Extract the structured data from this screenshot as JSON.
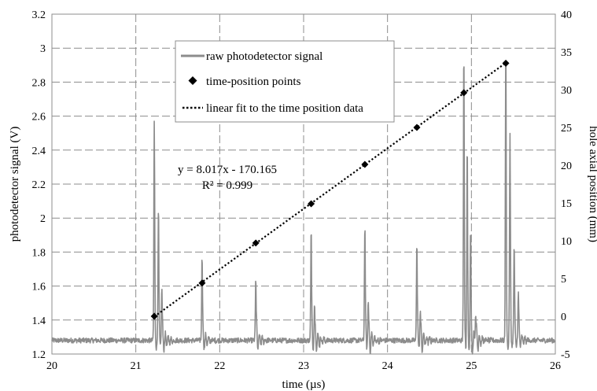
{
  "chart_data": {
    "type": "line",
    "xlabel": "time (µs)",
    "ylabel": "photodetector signal (V)",
    "y2label": "hole axial position (mm)",
    "xlim": [
      20,
      26
    ],
    "ylim": [
      1.2,
      3.2
    ],
    "y2lim": [
      -5,
      40
    ],
    "x_ticks": [
      20,
      21,
      22,
      23,
      24,
      25,
      26
    ],
    "y_ticks": [
      1.2,
      1.4,
      1.6,
      1.8,
      2,
      2.2,
      2.4,
      2.6,
      2.8,
      3,
      3.2
    ],
    "y2_ticks": [
      -5,
      0,
      5,
      10,
      15,
      20,
      25,
      30,
      35,
      40
    ],
    "grid": true,
    "legend_position": "top-center",
    "baseline_level": 1.28,
    "series": [
      {
        "name": "raw photodetector signal",
        "axis": "left",
        "style": "solid",
        "color": "#8c8c8c",
        "peaks": [
          {
            "x": 21.22,
            "y": 2.57
          },
          {
            "x": 21.27,
            "y": 2.05
          },
          {
            "x": 21.31,
            "y": 1.57
          },
          {
            "x": 21.79,
            "y": 1.78
          },
          {
            "x": 22.43,
            "y": 1.65
          },
          {
            "x": 23.09,
            "y": 1.94
          },
          {
            "x": 23.13,
            "y": 1.47
          },
          {
            "x": 23.73,
            "y": 1.97
          },
          {
            "x": 23.77,
            "y": 1.48
          },
          {
            "x": 24.35,
            "y": 1.87
          },
          {
            "x": 24.39,
            "y": 1.42
          },
          {
            "x": 24.91,
            "y": 3.01
          },
          {
            "x": 24.95,
            "y": 2.42
          },
          {
            "x": 24.99,
            "y": 1.9
          },
          {
            "x": 25.05,
            "y": 1.45
          },
          {
            "x": 25.41,
            "y": 3.05
          },
          {
            "x": 25.46,
            "y": 2.48
          },
          {
            "x": 25.51,
            "y": 1.85
          },
          {
            "x": 25.56,
            "y": 1.55
          }
        ]
      },
      {
        "name": "time-position points",
        "axis": "right",
        "style": "marker",
        "color": "#000000",
        "x": [
          21.22,
          21.79,
          22.43,
          23.09,
          23.73,
          24.35,
          24.91,
          25.41
        ],
        "y": [
          0.0,
          4.4,
          9.7,
          14.9,
          20.1,
          25.0,
          29.6,
          33.5
        ]
      },
      {
        "name": "linear fit to the time position data",
        "axis": "right",
        "style": "dotted",
        "color": "#000000",
        "slope": 8.017,
        "intercept": -170.165,
        "x_range": [
          21.22,
          25.41
        ]
      }
    ],
    "annotations": [
      "y = 8.017x - 170.165",
      "R² = 0.999"
    ]
  }
}
